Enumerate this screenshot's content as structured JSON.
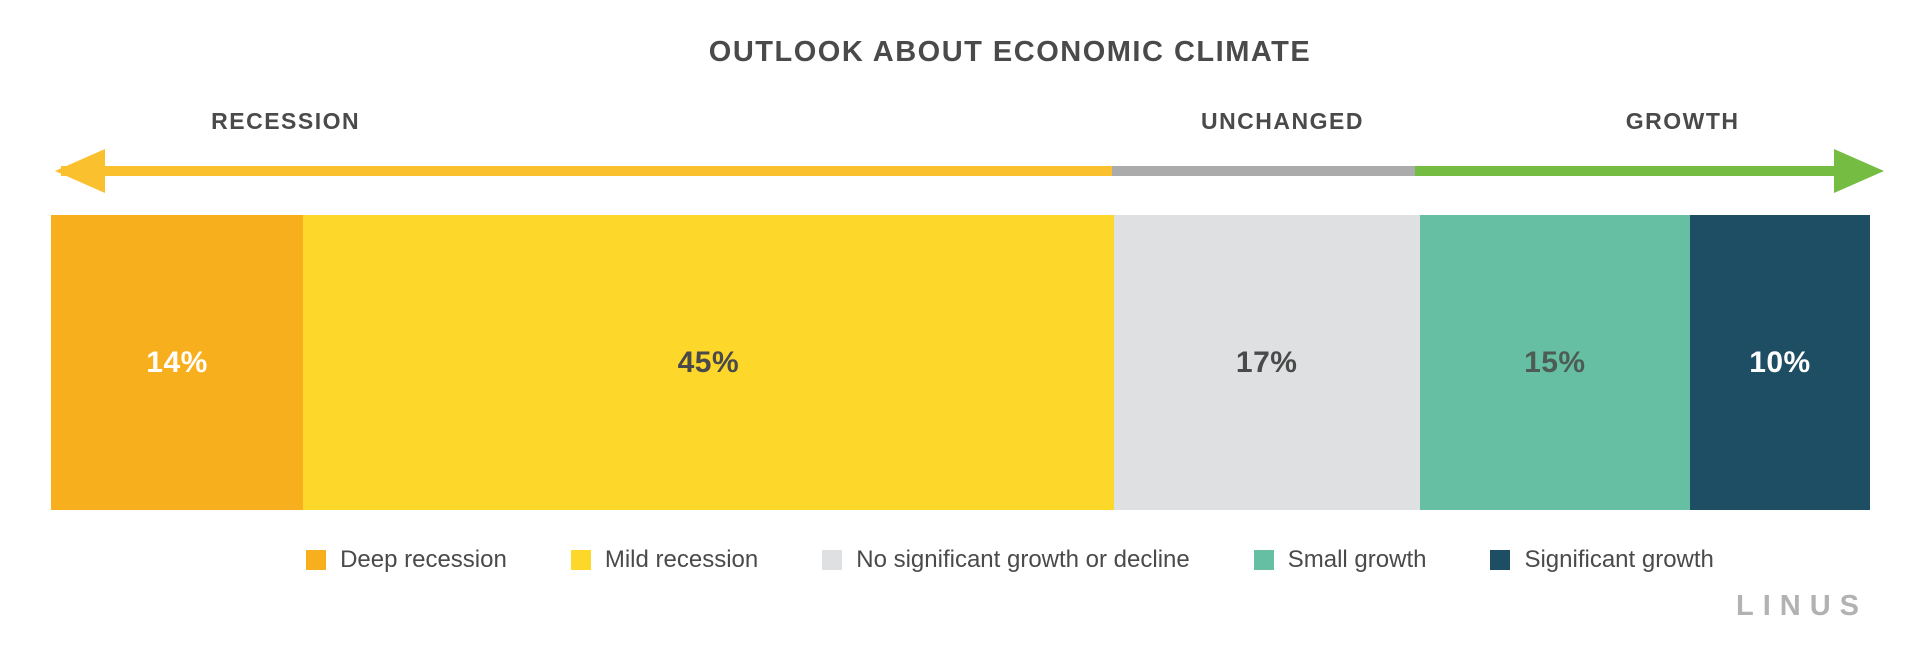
{
  "title": "OUTLOOK ABOUT ECONOMIC CLIMATE",
  "brand": "LINUS",
  "colors": {
    "text_dark": "#4A4A4A",
    "brand_gray": "#B2B2B2",
    "background": "#FFFFFF"
  },
  "direction_axis": {
    "labels": [
      {
        "text": "RECESSION"
      },
      {
        "text": "UNCHANGED"
      },
      {
        "text": "GROWTH"
      }
    ],
    "segments": [
      {
        "name": "recession",
        "span_pct": 59,
        "color": "#FBC02D"
      },
      {
        "name": "unchanged",
        "span_pct": 17,
        "color": "#ABABAB"
      },
      {
        "name": "growth",
        "span_pct": 25,
        "color": "#75BC42"
      }
    ]
  },
  "chart_data": {
    "type": "bar",
    "variant": "horizontal-stacked-100pct",
    "title": "OUTLOOK ABOUT ECONOMIC CLIMATE",
    "unit": "percent",
    "categories": [
      "Deep recession",
      "Mild recession",
      "No significant growth or decline",
      "Small growth",
      "Significant growth"
    ],
    "values": [
      14,
      45,
      17,
      15,
      10
    ],
    "legend_position": "bottom",
    "segments": [
      {
        "id": "deep-recession",
        "label": "Deep recession",
        "value": 14,
        "value_label": "14%",
        "color": "#F8AF1D",
        "text_color": "#FFFFFF"
      },
      {
        "id": "mild-recession",
        "label": "Mild recession",
        "value": 45,
        "value_label": "45%",
        "color": "#FED72B",
        "text_color": "#4A4A4A"
      },
      {
        "id": "no-significant-growth-or-decline",
        "label": "No significant growth or decline",
        "value": 17,
        "value_label": "17%",
        "color": "#DEE0E1",
        "text_color": "#4A4A4A"
      },
      {
        "id": "small-growth",
        "label": "Small growth",
        "value": 15,
        "value_label": "15%",
        "color": "#66BFA3",
        "text_color": "#4D5D55"
      },
      {
        "id": "significant-growth",
        "label": "Significant growth",
        "value": 10,
        "value_label": "10%",
        "color": "#1D4E63",
        "text_color": "#FFFFFF"
      }
    ]
  }
}
